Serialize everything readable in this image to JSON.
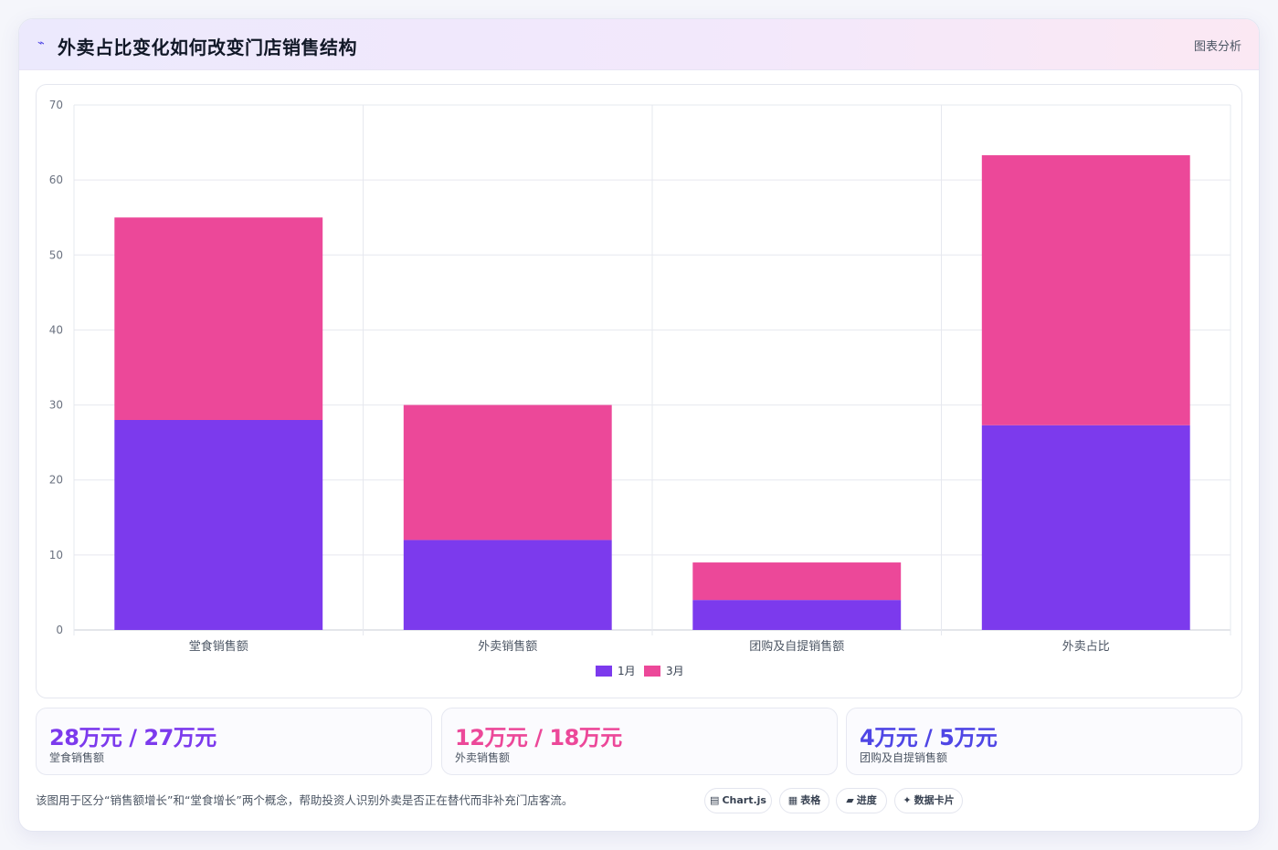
{
  "header": {
    "icon": "trend-icon",
    "title": "外卖占比变化如何改变门店销售结构",
    "subtitle": "图表分析"
  },
  "chart_data": {
    "type": "bar",
    "stacked": true,
    "categories": [
      "堂食销售额",
      "外卖销售额",
      "团购及自提销售额",
      "外卖占比"
    ],
    "series": [
      {
        "name": "1月",
        "values": [
          28,
          12,
          4,
          27.3
        ],
        "color": "#7c3aed"
      },
      {
        "name": "3月",
        "values": [
          27,
          18,
          5,
          36
        ],
        "color": "#ec4899"
      }
    ],
    "ylim": [
      0,
      70
    ],
    "yticks": [
      0,
      10,
      20,
      30,
      40,
      50,
      60,
      70
    ],
    "grid": true,
    "legend": "bottom"
  },
  "stats": [
    {
      "value": "28万元 / 27万元",
      "label": "堂食销售额",
      "color": "#7c3aed"
    },
    {
      "value": "12万元 / 18万元",
      "label": "外卖销售额",
      "color": "#ec4899"
    },
    {
      "value": "4万元 / 5万元",
      "label": "团购及自提销售额",
      "color": "#4f46e5"
    }
  ],
  "footnote": "该图用于区分“销售额增长”和“堂食增长”两个概念，帮助投资人识别外卖是否正在替代而非补充门店客流。",
  "tags": [
    {
      "icon": "chart-icon",
      "glyph": "▤",
      "label": "Chart.js"
    },
    {
      "icon": "table-icon",
      "glyph": "▦",
      "label": "表格"
    },
    {
      "icon": "progress-icon",
      "glyph": "▰",
      "label": "进度"
    },
    {
      "icon": "sparkle-icon",
      "glyph": "✦",
      "label": "数据卡片"
    }
  ]
}
